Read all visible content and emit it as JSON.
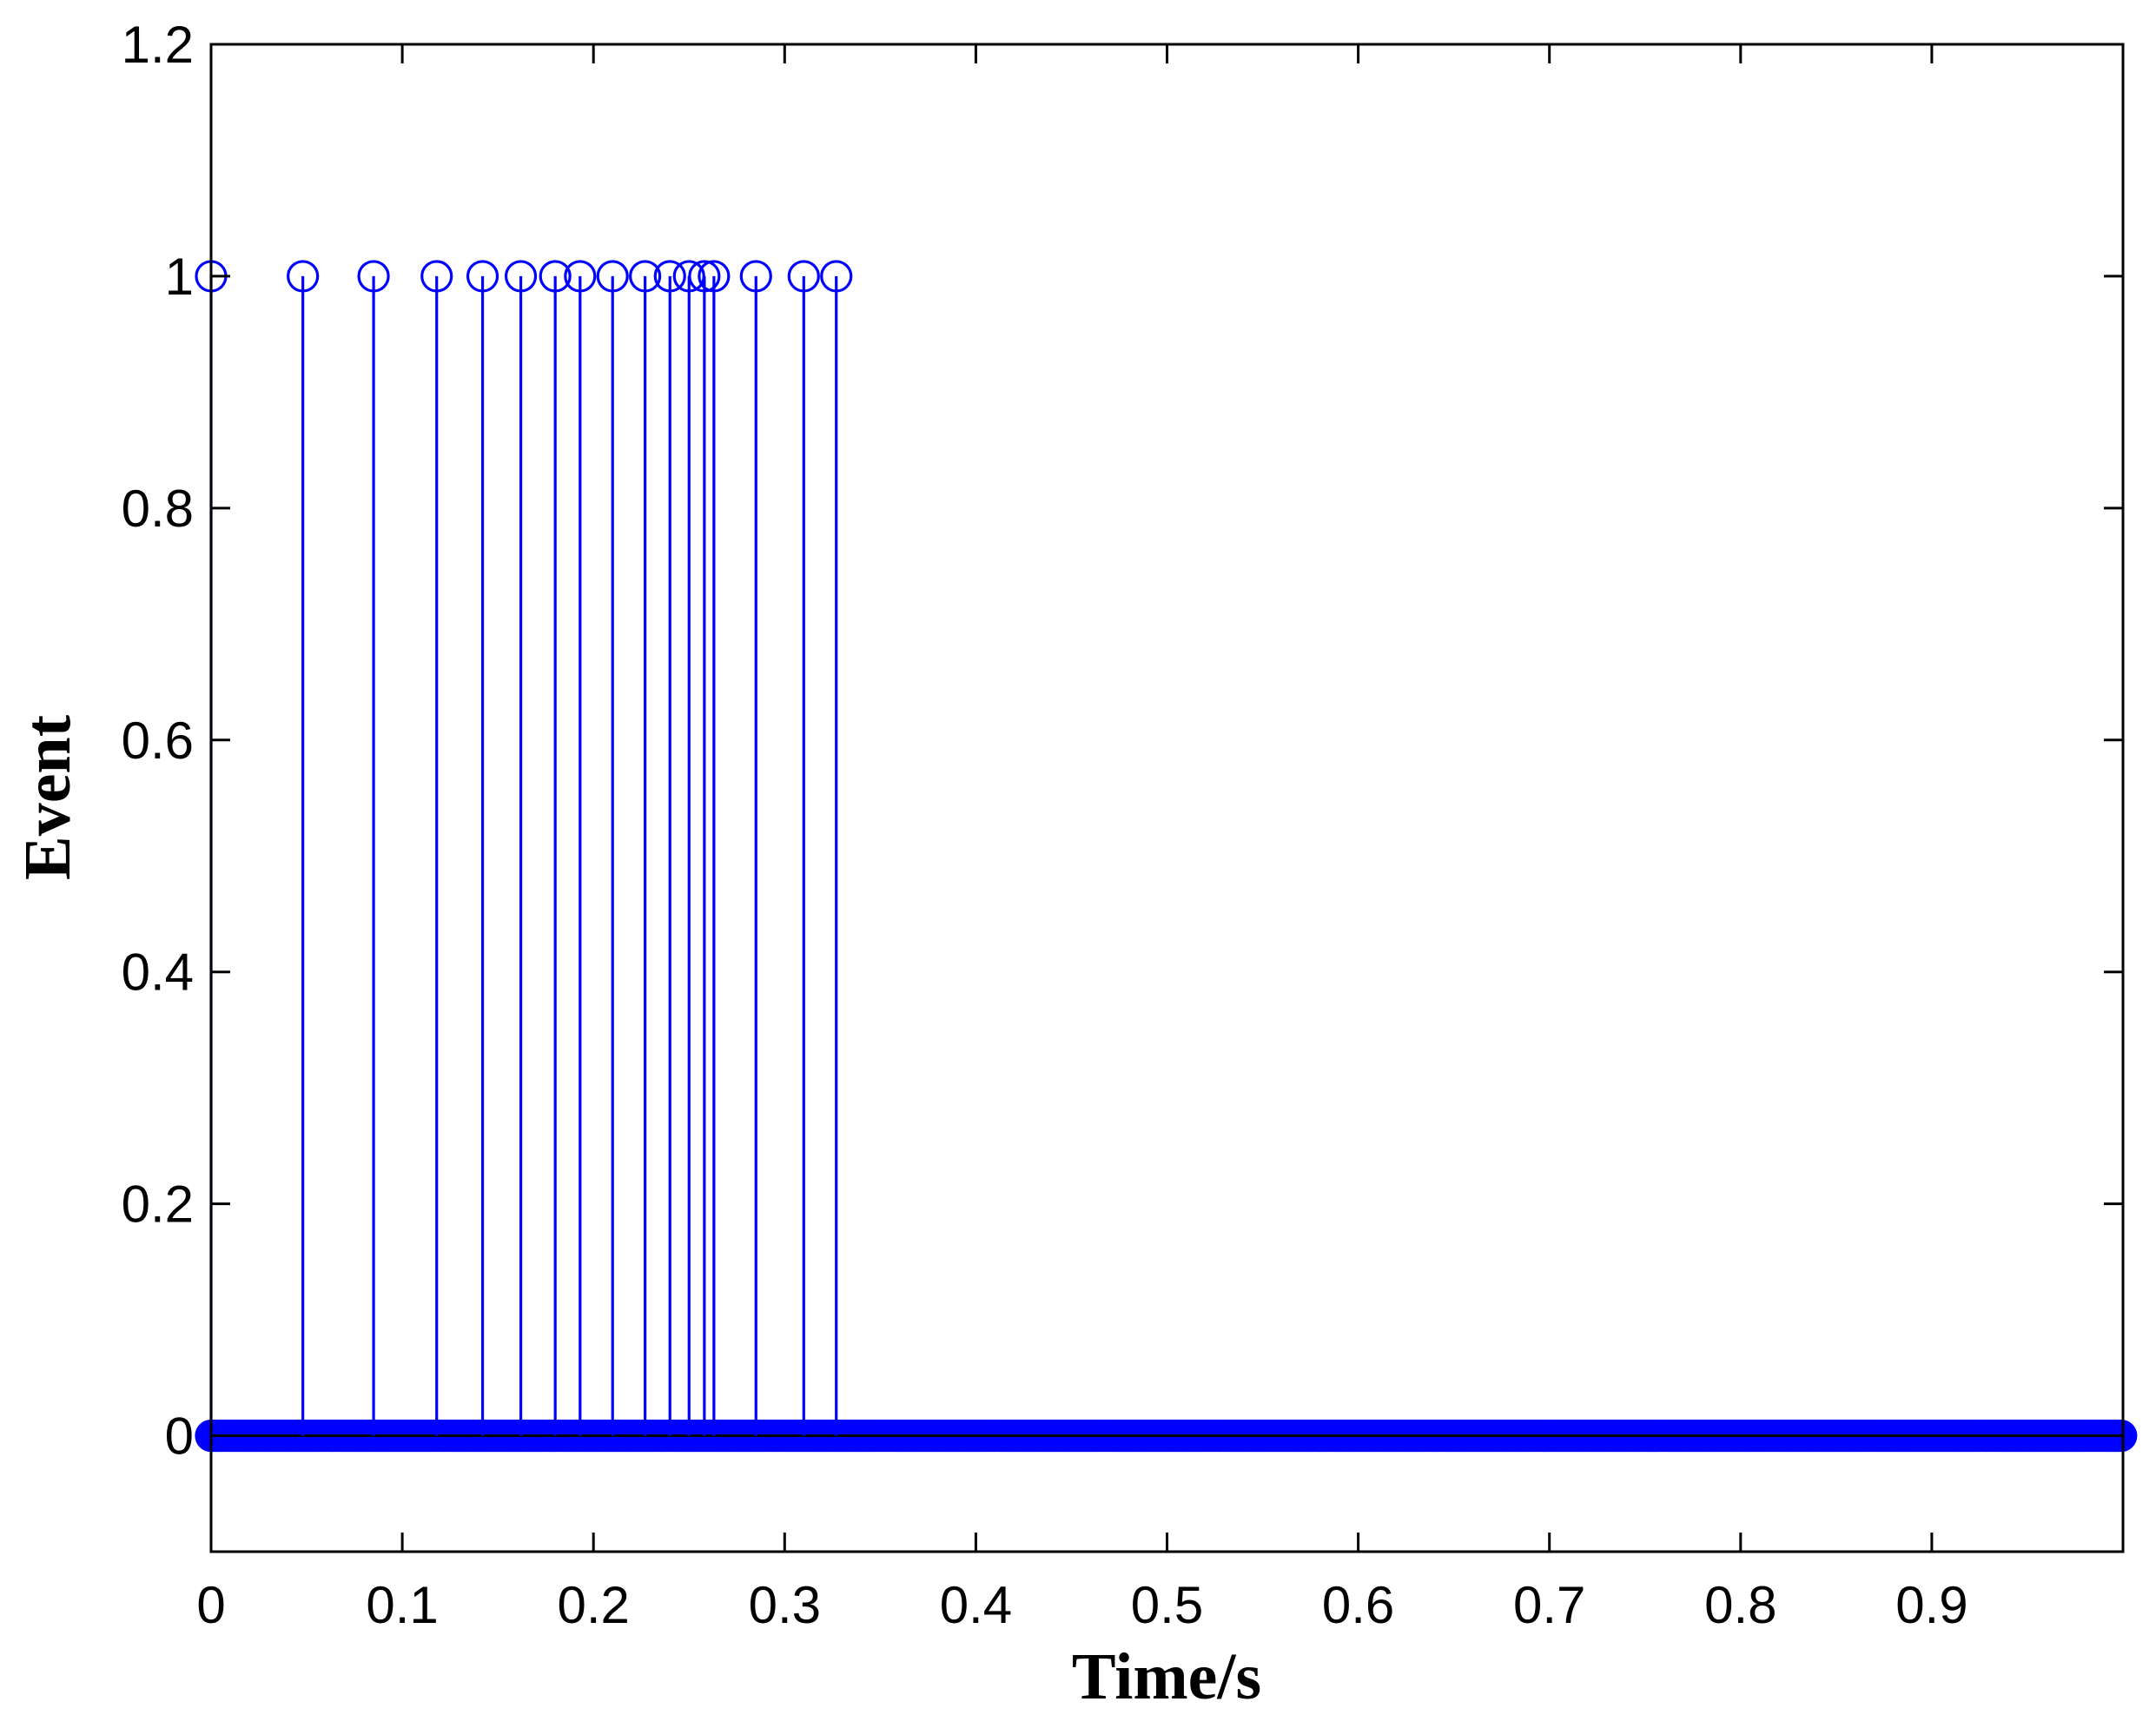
{
  "chart_data": {
    "type": "stem",
    "xlabel": "Time/s",
    "ylabel": "Event",
    "xlim": [
      0,
      1
    ],
    "ylim": [
      -0.1,
      1.2
    ],
    "x_ticks": [
      "0",
      "0.1",
      "0.2",
      "0.3",
      "0.4",
      "0.5",
      "0.6",
      "0.7",
      "0.8",
      "0.9"
    ],
    "y_ticks": [
      "0",
      "0.2",
      "0.4",
      "0.6",
      "0.8",
      "1",
      "1.2"
    ],
    "grid": false,
    "series": [
      {
        "color": "#0000ff",
        "marker": "circle",
        "events_at_1": [
          0.0,
          0.048,
          0.085,
          0.118,
          0.142,
          0.162,
          0.18,
          0.193,
          0.21,
          0.227,
          0.24,
          0.25,
          0.258,
          0.263,
          0.285,
          0.31,
          0.327
        ],
        "samples_at_0_from": 0.0,
        "samples_at_0_to": 0.999,
        "samples_at_0_step": 0.001
      }
    ],
    "baseline_color": "#000000"
  }
}
